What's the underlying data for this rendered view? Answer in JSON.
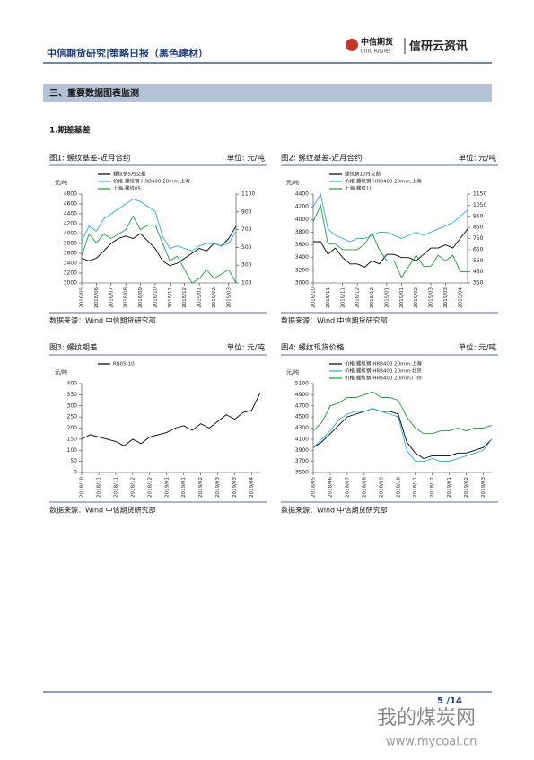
{
  "header": {
    "title": "中信期货研究|策略日报（黑色建材）",
    "logo_cn": "中信期货",
    "logo_en": "CITIC Futures",
    "brand": "信研云资讯"
  },
  "section": "三、重要数据图表监测",
  "subsection": "1.期差基差",
  "chart_data": [
    {
      "type": "line",
      "title": "图1: 螺纹基差-近月合约",
      "unit_note": "单位: 元/吨",
      "source": "数据来源：Wind  中信期货研究部",
      "y_unit": "元/吨",
      "categories": [
        "2018/05",
        null,
        "2018/06",
        null,
        "2018/07",
        null,
        "2018/08",
        null,
        "2018/09",
        null,
        "2018/10",
        null,
        "2018/11",
        null,
        "2018/12",
        null,
        "2019/01",
        null,
        "2019/02",
        null,
        "2019/03",
        null
      ],
      "ylim": [
        3000,
        4800
      ],
      "yticks": [
        3000,
        3200,
        3400,
        3600,
        3800,
        4000,
        4200,
        4400,
        4600,
        4800
      ],
      "y2lim": [
        100,
        1100
      ],
      "y2ticks": [
        100,
        300,
        500,
        700,
        900,
        1100
      ],
      "series": [
        {
          "name": "螺纹钢5月交割",
          "color": "#000000",
          "values": [
            3500,
            3450,
            3500,
            3650,
            3800,
            3900,
            3950,
            3900,
            4000,
            3850,
            3700,
            3450,
            3350,
            3400,
            3500,
            3600,
            3700,
            3650,
            3800,
            3750,
            3900,
            4150
          ]
        },
        {
          "name": "价格:螺纹钢:HRB400  20mm:上海",
          "color": "#29a8e0",
          "values": [
            3850,
            4150,
            4050,
            4300,
            4400,
            4500,
            4600,
            4700,
            4650,
            4550,
            4450,
            3950,
            3700,
            3750,
            3700,
            3650,
            3750,
            3800,
            3800,
            3750,
            3800,
            4050
          ]
        },
        {
          "name": "上海-螺纹05",
          "color": "#1a9e3a",
          "axis": "y2",
          "values": [
            400,
            650,
            550,
            650,
            600,
            650,
            700,
            850,
            700,
            750,
            750,
            550,
            350,
            400,
            250,
            100,
            150,
            250,
            150,
            200,
            250,
            100
          ]
        }
      ]
    },
    {
      "type": "line",
      "title": "图2: 螺纹基差-近月合约",
      "unit_note": "单位: 元/吨",
      "source": "数据来源：Wind  中信期货研究部",
      "y_unit": "元/吨",
      "categories": [
        "2018/10",
        null,
        "2018/11",
        null,
        "2018/11",
        null,
        "2018/12",
        null,
        "2018/12",
        null,
        "2019/01",
        null,
        "2019/01",
        null,
        "2019/02",
        null,
        "2019/03",
        null,
        "2019/03",
        null,
        "2019/04",
        null
      ],
      "ylim": [
        3000,
        4400
      ],
      "yticks": [
        3000,
        3200,
        3400,
        3600,
        3800,
        4000,
        4200,
        4400
      ],
      "y2lim": [
        350,
        1150
      ],
      "y2ticks": [
        350,
        450,
        550,
        650,
        750,
        850,
        950,
        1050,
        1150
      ],
      "series": [
        {
          "name": "螺纹钢10月交割",
          "color": "#000000",
          "values": [
            3650,
            3650,
            3450,
            3550,
            3400,
            3300,
            3300,
            3250,
            3350,
            3300,
            3450,
            3450,
            3400,
            3400,
            3350,
            3450,
            3550,
            3550,
            3600,
            3550,
            3700,
            3850
          ]
        },
        {
          "name": "价格:螺纹钢:HRB400  20mm:上海",
          "color": "#29a8e0",
          "values": [
            4200,
            4400,
            3850,
            3750,
            3700,
            3650,
            3700,
            3700,
            3750,
            3800,
            3800,
            3750,
            3700,
            3750,
            3800,
            3750,
            3800,
            3850,
            3900,
            3950,
            4050,
            4150
          ]
        },
        {
          "name": "上海-螺纹10",
          "color": "#1a9e3a",
          "axis": "y2",
          "values": [
            900,
            1050,
            700,
            700,
            650,
            650,
            650,
            700,
            800,
            650,
            550,
            550,
            400,
            500,
            600,
            500,
            500,
            600,
            550,
            600,
            450,
            450
          ]
        }
      ]
    },
    {
      "type": "line",
      "title": "图3: 螺纹期差",
      "unit_note": "单位: 元/吨",
      "source": "数据来源：Wind  中信期货研究部",
      "y_unit": "元/吨",
      "categories": [
        "2018/10",
        null,
        "2018/11",
        null,
        "2018/11",
        null,
        "2018/12",
        null,
        "2018/12",
        null,
        "2019/01",
        null,
        "2019/01",
        null,
        "2019/02",
        null,
        "2019/03",
        null,
        "2019/03",
        null,
        "2019/04",
        null
      ],
      "ylim": [
        0,
        400
      ],
      "yticks": [
        0,
        50,
        100,
        150,
        200,
        250,
        300,
        350,
        400
      ],
      "series": [
        {
          "name": "RB05-10",
          "color": "#000000",
          "values": [
            150,
            170,
            160,
            150,
            140,
            120,
            150,
            130,
            160,
            170,
            180,
            200,
            210,
            190,
            220,
            200,
            230,
            260,
            240,
            270,
            280,
            360
          ]
        }
      ]
    },
    {
      "type": "line",
      "title": "图4: 螺纹现货价格",
      "unit_note": "单位: 元/吨",
      "source": "数据来源：Wind  中信期货研究部",
      "y_unit": "元/吨",
      "categories": [
        "2018/05",
        null,
        "2018/06",
        null,
        "2018/07",
        null,
        "2018/08",
        null,
        "2018/09",
        null,
        "2018/10",
        null,
        "2018/11",
        null,
        "2018/12",
        null,
        "2019/01",
        null,
        "2019/02",
        null,
        "2019/03",
        null
      ],
      "ylim": [
        3500,
        5100
      ],
      "yticks": [
        3500,
        3700,
        3900,
        4100,
        4300,
        4500,
        4700,
        4900,
        5100
      ],
      "series": [
        {
          "name": "价格:螺纹钢:HRB400  20mm:上海",
          "color": "#000000",
          "values": [
            3950,
            4050,
            4200,
            4350,
            4500,
            4550,
            4600,
            4650,
            4600,
            4600,
            4550,
            4050,
            3850,
            3750,
            3800,
            3800,
            3800,
            3850,
            3850,
            3900,
            3950,
            4100
          ]
        },
        {
          "name": "价格:螺纹钢:HRB400  20mm:北京",
          "color": "#29a8e0",
          "values": [
            3950,
            4100,
            4250,
            4450,
            4550,
            4600,
            4600,
            4650,
            4600,
            4550,
            4500,
            3900,
            3700,
            3700,
            3750,
            3700,
            3700,
            3750,
            3800,
            3850,
            3900,
            4100
          ]
        },
        {
          "name": "价格:螺纹钢:HRB400  20mm:广州",
          "color": "#1a9e3a",
          "values": [
            4250,
            4400,
            4700,
            4750,
            4850,
            4850,
            4900,
            4950,
            4850,
            4850,
            4800,
            4500,
            4300,
            4200,
            4200,
            4250,
            4250,
            4300,
            4250,
            4300,
            4300,
            4350
          ]
        }
      ]
    }
  ],
  "footer": {
    "page": "5 /14"
  },
  "watermark": {
    "cn": "我的煤炭网",
    "url": "www.mycoal.cn"
  }
}
